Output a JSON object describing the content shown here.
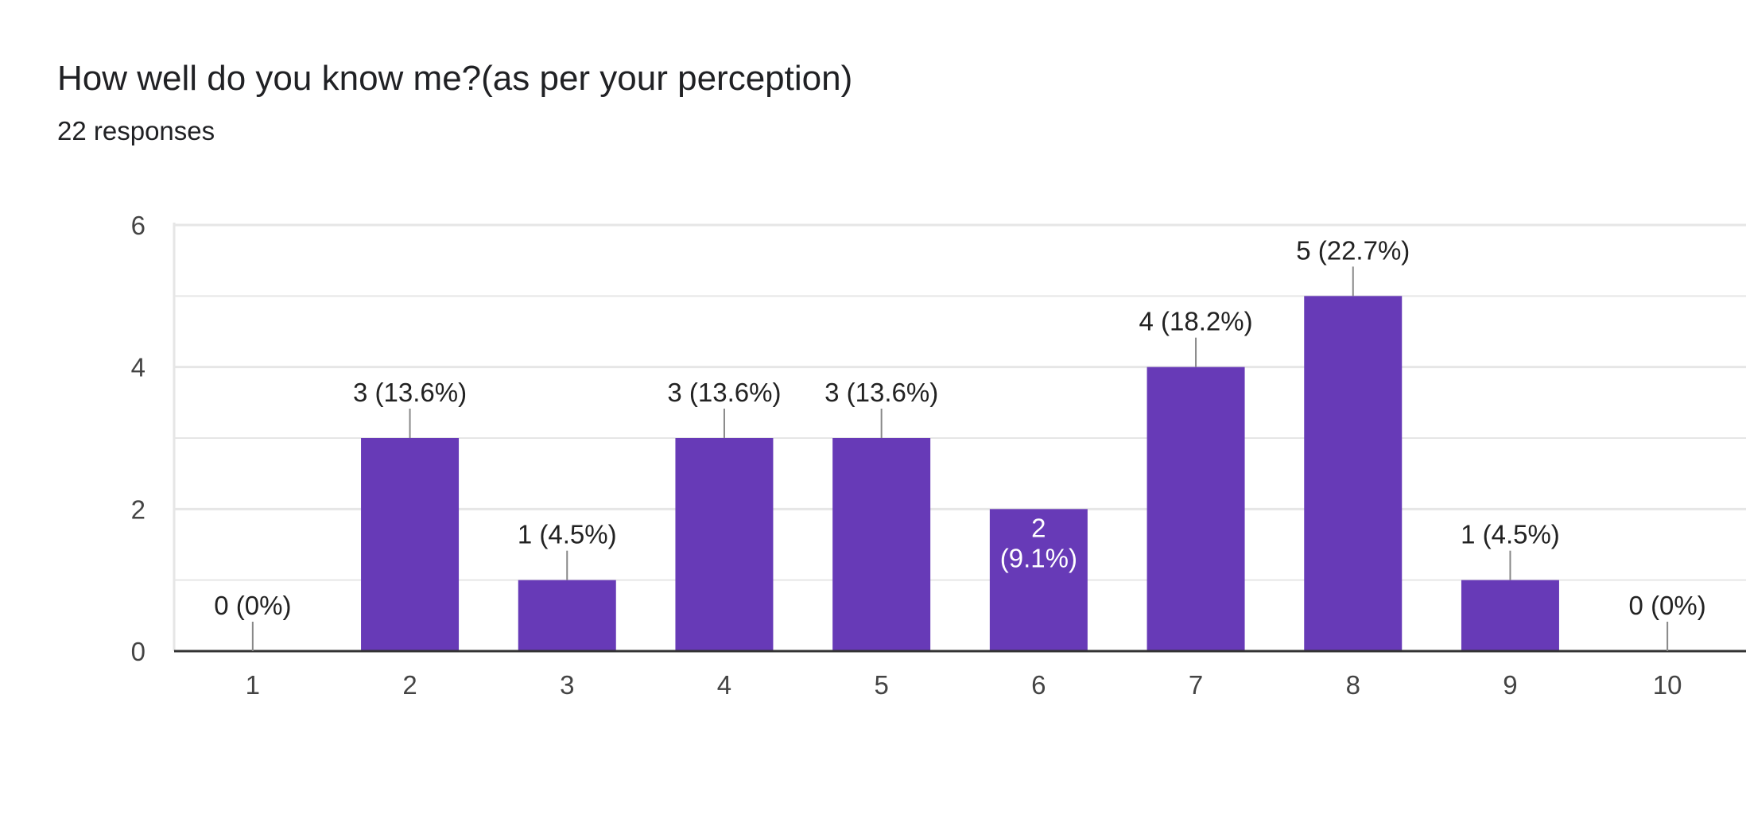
{
  "title": "How well do you know me?(as per your perception)",
  "subtitle": "22 responses",
  "colors": {
    "bar": "#673ab7",
    "grid": "#e6e6e6",
    "axis": "#333333",
    "leader": "#888888"
  },
  "chart_data": {
    "type": "bar",
    "categories": [
      "1",
      "2",
      "3",
      "4",
      "5",
      "6",
      "7",
      "8",
      "9",
      "10"
    ],
    "values": [
      0,
      3,
      1,
      3,
      3,
      2,
      4,
      5,
      1,
      0
    ],
    "data_labels": [
      "0 (0%)",
      "3 (13.6%)",
      "1 (4.5%)",
      "3 (13.6%)",
      "3 (13.6%)",
      "2 (9.1%)",
      "4 (18.2%)",
      "5 (22.7%)",
      "1 (4.5%)",
      "0 (0%)"
    ],
    "ylim": [
      0,
      6
    ],
    "yticks": [
      "0",
      "2",
      "4",
      "6"
    ],
    "grid": true
  }
}
